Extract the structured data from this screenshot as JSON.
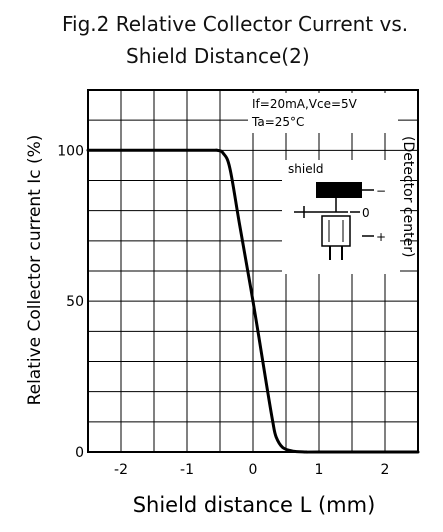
{
  "title": {
    "line1": "Fig.2  Relative  Collector  Current  vs.",
    "line2": "Shield  Distance(2)"
  },
  "chart_data": {
    "type": "line",
    "xlabel": "Shield distance L (mm)",
    "ylabel": "Relative Collector current Ic  (%)",
    "xlim": [
      -2.5,
      2.5
    ],
    "ylim": [
      0,
      120
    ],
    "x_ticks": [
      -2,
      -1,
      0,
      1,
      2
    ],
    "x_tick_labels": [
      "-2",
      "-1",
      "0",
      "1",
      "2"
    ],
    "y_ticks": [
      0,
      50,
      100
    ],
    "y_tick_labels": [
      "0",
      "50",
      "100"
    ],
    "grid": true,
    "series": [
      {
        "x": [
          -2.5,
          -0.75,
          -0.55,
          -0.45,
          -0.35,
          -0.2,
          0.0,
          0.2,
          0.3,
          0.35,
          0.45,
          0.6,
          0.8,
          1.0,
          2.5
        ],
        "y": [
          100,
          100,
          100,
          99,
          94,
          75,
          50,
          23,
          10,
          5,
          1.5,
          0.3,
          0,
          0,
          0
        ]
      }
    ],
    "annotations": {
      "conditions_line1": "If=20mA,Vce=5V",
      "conditions_line2": "Ta=25°C",
      "side_label": "(Detector center)",
      "inset_label": "shield",
      "inset_minus": "−",
      "inset_zero": "0",
      "inset_plus": "+"
    }
  }
}
